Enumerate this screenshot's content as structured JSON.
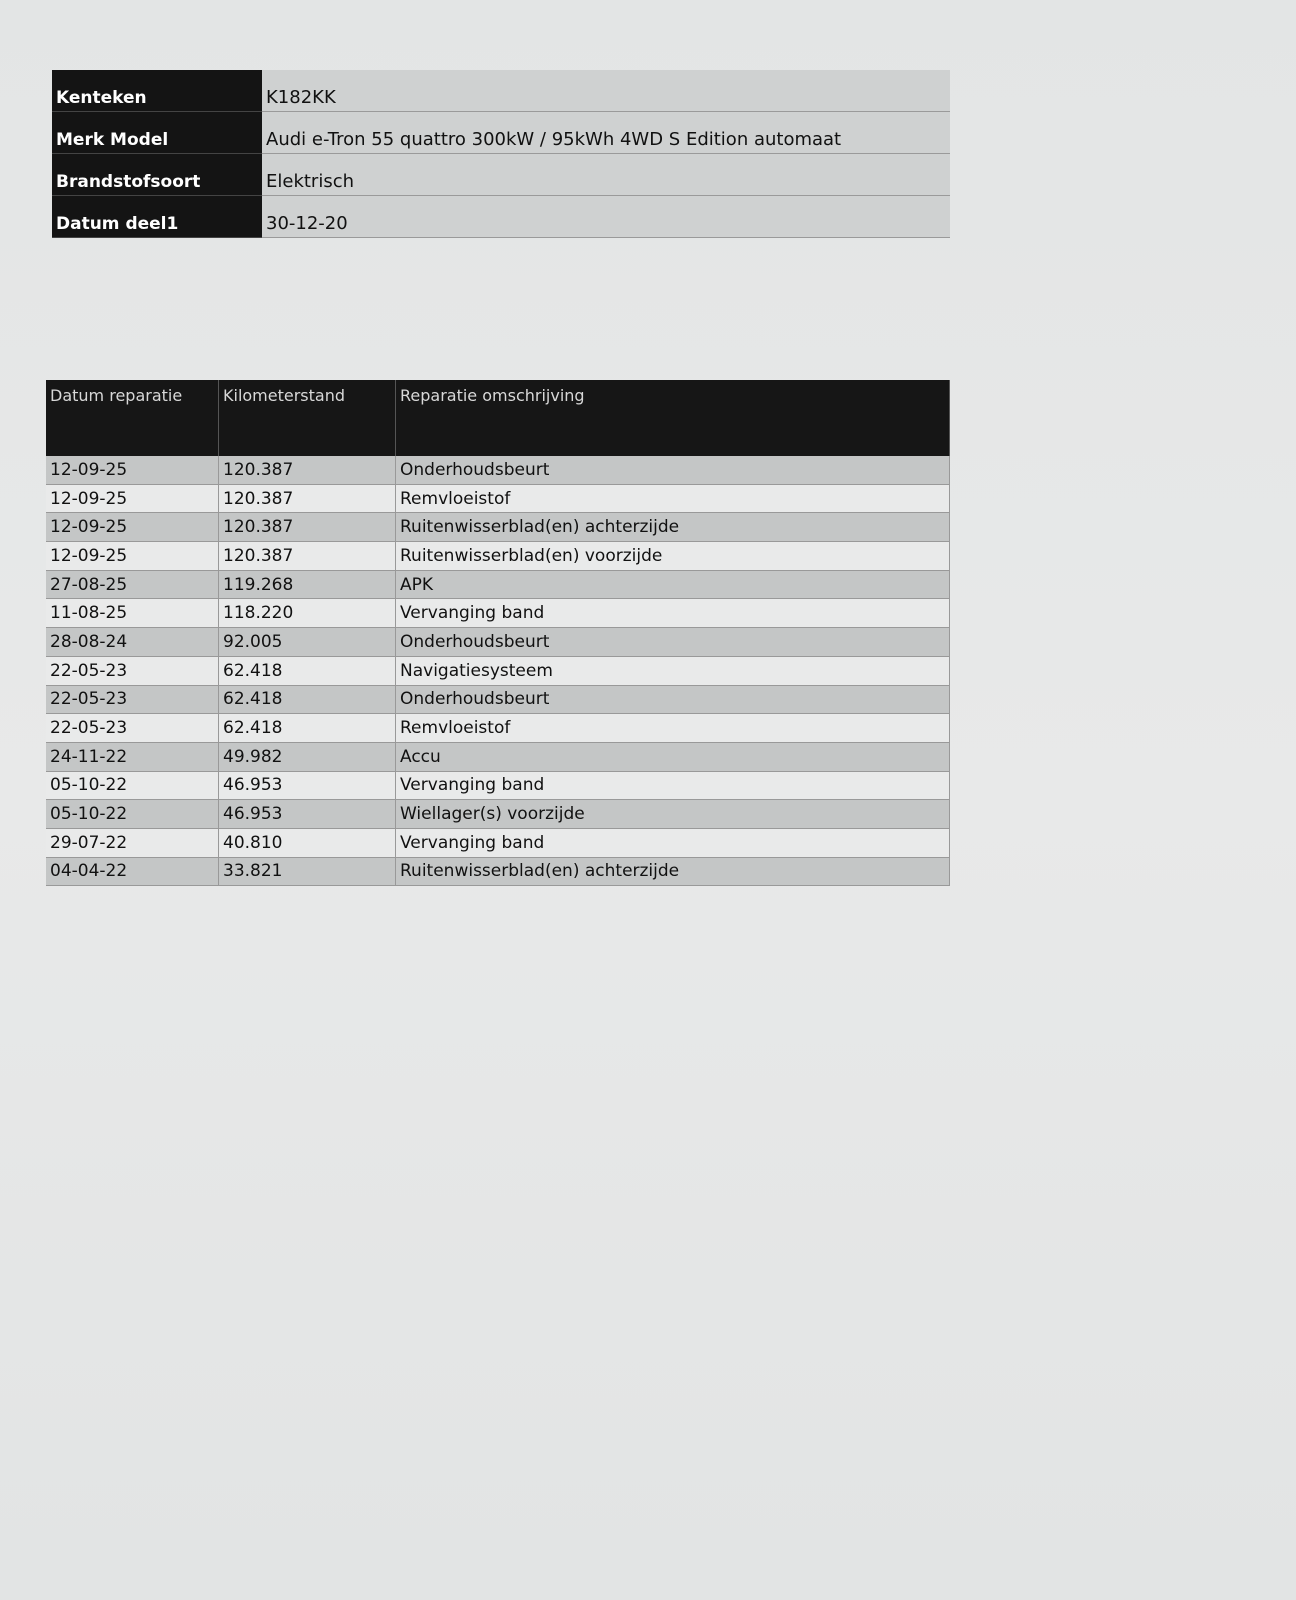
{
  "vehicle": [
    {
      "label": "Kenteken",
      "value": "K182KK"
    },
    {
      "label": "Merk Model",
      "value": "Audi e-Tron 55 quattro 300kW / 95kWh 4WD S Edition automaat"
    },
    {
      "label": "Brandstofsoort",
      "value": "Elektrisch"
    },
    {
      "label": "Datum deel1",
      "value": "30-12-20"
    }
  ],
  "repairs": {
    "headers": [
      "Datum reparatie",
      "Kilometerstand",
      "Reparatie omschrijving"
    ],
    "rows": [
      [
        "12-09-25",
        "120.387",
        "Onderhoudsbeurt"
      ],
      [
        "12-09-25",
        "120.387",
        "Remvloeistof"
      ],
      [
        "12-09-25",
        "120.387",
        "Ruitenwisserblad(en) achterzijde"
      ],
      [
        "12-09-25",
        "120.387",
        "Ruitenwisserblad(en) voorzijde"
      ],
      [
        "27-08-25",
        "119.268",
        "APK"
      ],
      [
        "11-08-25",
        "118.220",
        "Vervanging band"
      ],
      [
        "28-08-24",
        "92.005",
        "Onderhoudsbeurt"
      ],
      [
        "22-05-23",
        "62.418",
        "Navigatiesysteem"
      ],
      [
        "22-05-23",
        "62.418",
        "Onderhoudsbeurt"
      ],
      [
        "22-05-23",
        "62.418",
        "Remvloeistof"
      ],
      [
        "24-11-22",
        "49.982",
        "Accu"
      ],
      [
        "05-10-22",
        "46.953",
        "Vervanging band"
      ],
      [
        "05-10-22",
        "46.953",
        "Wiellager(s) voorzijde"
      ],
      [
        "29-07-22",
        "40.810",
        "Vervanging band"
      ],
      [
        "04-04-22",
        "33.821",
        "Ruitenwisserblad(en) achterzijde"
      ]
    ]
  }
}
